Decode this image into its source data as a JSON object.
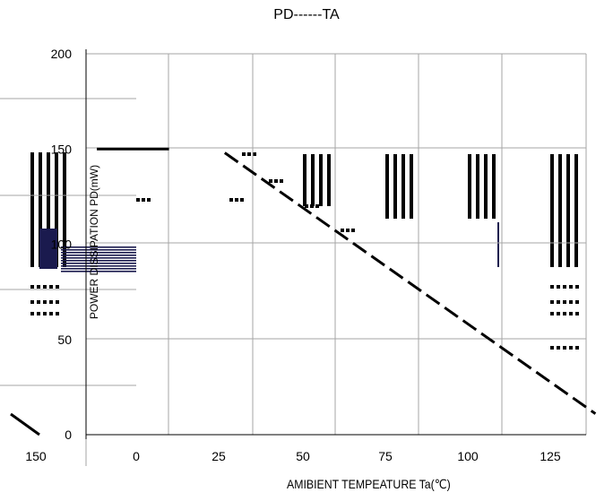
{
  "chart_data": {
    "type": "line",
    "title": "PD------TA",
    "xlabel": "AMIBIENT TEMPEATURE Ta(℃)",
    "ylabel": "POWER DISSIPATION PD(mW)",
    "xlim": [
      0,
      140
    ],
    "ylim": [
      0,
      200
    ],
    "x_ticks": [
      "150",
      "0",
      "25",
      "50",
      "75",
      "100",
      "125"
    ],
    "y_ticks": [
      "0",
      "50",
      "100",
      "150",
      "200"
    ],
    "grid": true,
    "series": [
      {
        "x": [
          -12,
          10
        ],
        "y": [
          150,
          150
        ],
        "style": "solid"
      },
      {
        "x": [
          27,
          140
        ],
        "y": [
          148,
          11
        ],
        "style": "dashed"
      }
    ],
    "colors": {
      "line": "#000000",
      "grid": "#a6a6a6",
      "artifact": "#1a1a4e"
    }
  }
}
